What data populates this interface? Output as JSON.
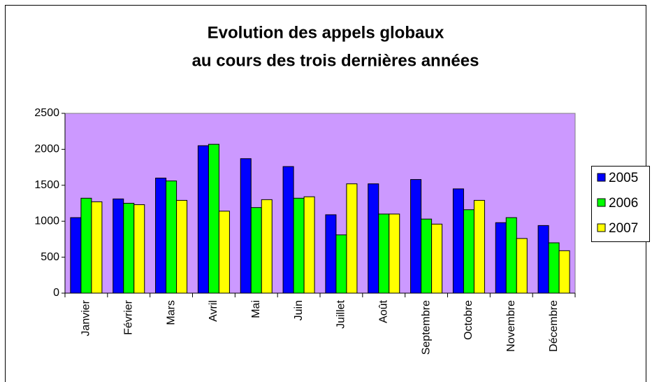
{
  "chart_data": {
    "type": "bar",
    "title": "Evolution des appels globaux",
    "subtitle": "au cours des trois dernières années",
    "categories": [
      "Janvier",
      "Février",
      "Mars",
      "Avril",
      "Mai",
      "Juin",
      "Juillet",
      "Août",
      "Septembre",
      "Octobre",
      "Novembre",
      "Décembre"
    ],
    "series": [
      {
        "name": "2005",
        "color": "#0000ff",
        "values": [
          1050,
          1310,
          1600,
          2050,
          1870,
          1760,
          1090,
          1520,
          1580,
          1450,
          980,
          940
        ]
      },
      {
        "name": "2006",
        "color": "#00ff00",
        "values": [
          1320,
          1250,
          1560,
          2070,
          1190,
          1320,
          810,
          1100,
          1030,
          1160,
          1050,
          700
        ]
      },
      {
        "name": "2007",
        "color": "#ffff00",
        "values": [
          1270,
          1230,
          1290,
          1140,
          1300,
          1340,
          1520,
          1100,
          960,
          1290,
          760,
          590
        ]
      }
    ],
    "ylim": [
      0,
      2500
    ],
    "yticks": [
      0,
      500,
      1000,
      1500,
      2000,
      2500
    ],
    "legend": "right",
    "plot_background": "#cc99ff"
  }
}
